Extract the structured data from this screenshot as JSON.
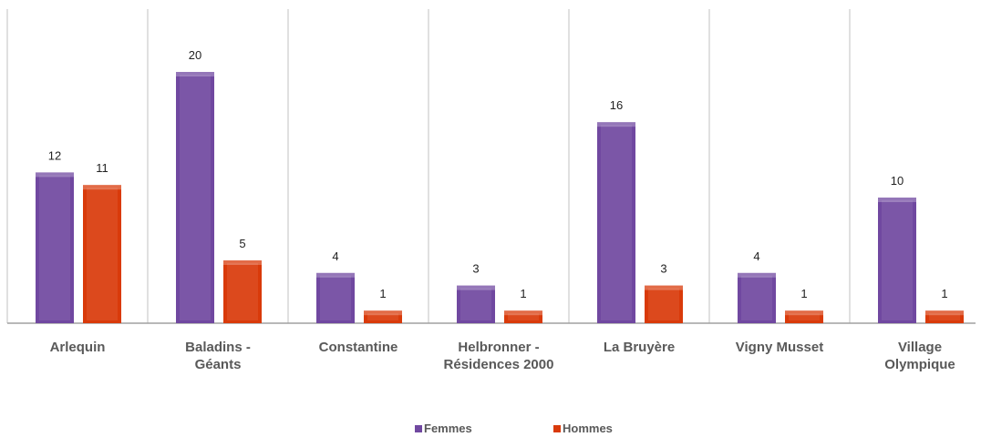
{
  "chart_data": {
    "type": "bar",
    "categories": [
      "Arlequin",
      "Baladins -\nGéants",
      "Constantine",
      "Helbronner -\nRésidences 2000",
      "La Bruyère",
      "Vigny Musset",
      "Village\nOlympique"
    ],
    "series": [
      {
        "name": "Femmes",
        "color": "#7048a0",
        "values": [
          12,
          20,
          4,
          3,
          16,
          4,
          10
        ]
      },
      {
        "name": "Hommes",
        "color": "#d93a0a",
        "values": [
          11,
          5,
          1,
          1,
          3,
          1,
          1
        ]
      }
    ],
    "ylim": [
      0,
      25
    ]
  }
}
